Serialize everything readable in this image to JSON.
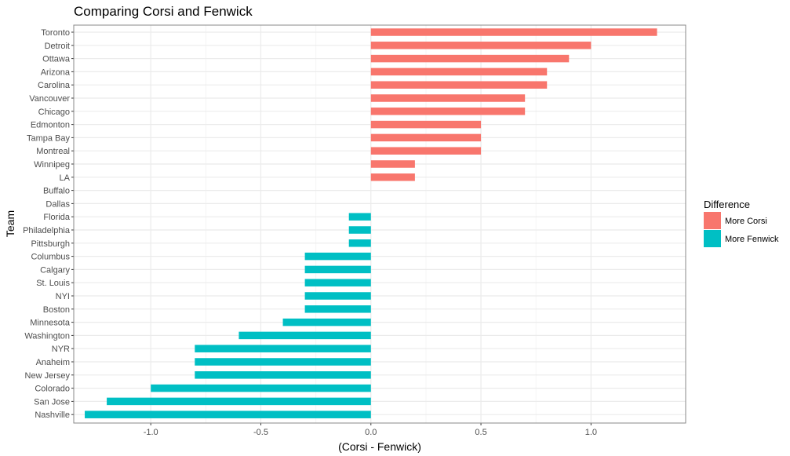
{
  "chart_data": {
    "type": "bar",
    "orientation": "horizontal",
    "title": "Comparing Corsi and Fenwick",
    "xlabel": "(Corsi - Fenwick)",
    "ylabel": "Team",
    "xlim": [
      -1.35,
      1.43
    ],
    "xticks": [
      {
        "value": -1.0,
        "label": "-1.0"
      },
      {
        "value": -0.5,
        "label": "-0.5"
      },
      {
        "value": 0.0,
        "label": "0.0"
      },
      {
        "value": 0.5,
        "label": "0.5"
      },
      {
        "value": 1.0,
        "label": "1.0"
      }
    ],
    "grid": true,
    "legend": {
      "title": "Difference",
      "position": "right",
      "entries": [
        {
          "label": "More Corsi",
          "color": "#F8766D"
        },
        {
          "label": "More Fenwick",
          "color": "#00BFC4"
        }
      ]
    },
    "categories": [
      "Toronto",
      "Detroit",
      "Ottawa",
      "Arizona",
      "Carolina",
      "Vancouver",
      "Chicago",
      "Edmonton",
      "Tampa Bay",
      "Montreal",
      "Winnipeg",
      "LA",
      "Buffalo",
      "Dallas",
      "Florida",
      "Philadelphia",
      "Pittsburgh",
      "Columbus",
      "Calgary",
      "St. Louis",
      "NYI",
      "Boston",
      "Minnesota",
      "Washington",
      "NYR",
      "Anaheim",
      "New Jersey",
      "Colorado",
      "San Jose",
      "Nashville"
    ],
    "values": [
      1.3,
      1.0,
      0.9,
      0.8,
      0.8,
      0.7,
      0.7,
      0.5,
      0.5,
      0.5,
      0.2,
      0.2,
      0.0,
      0.0,
      -0.1,
      -0.1,
      -0.1,
      -0.3,
      -0.3,
      -0.3,
      -0.3,
      -0.3,
      -0.4,
      -0.6,
      -0.8,
      -0.8,
      -0.8,
      -1.0,
      -1.2,
      -1.3
    ],
    "colors": {
      "positive": "#F8766D",
      "negative": "#00BFC4",
      "panel_border": "#888888",
      "grid_major": "#ebebeb",
      "grid_minor": "#f5f5f5"
    }
  }
}
